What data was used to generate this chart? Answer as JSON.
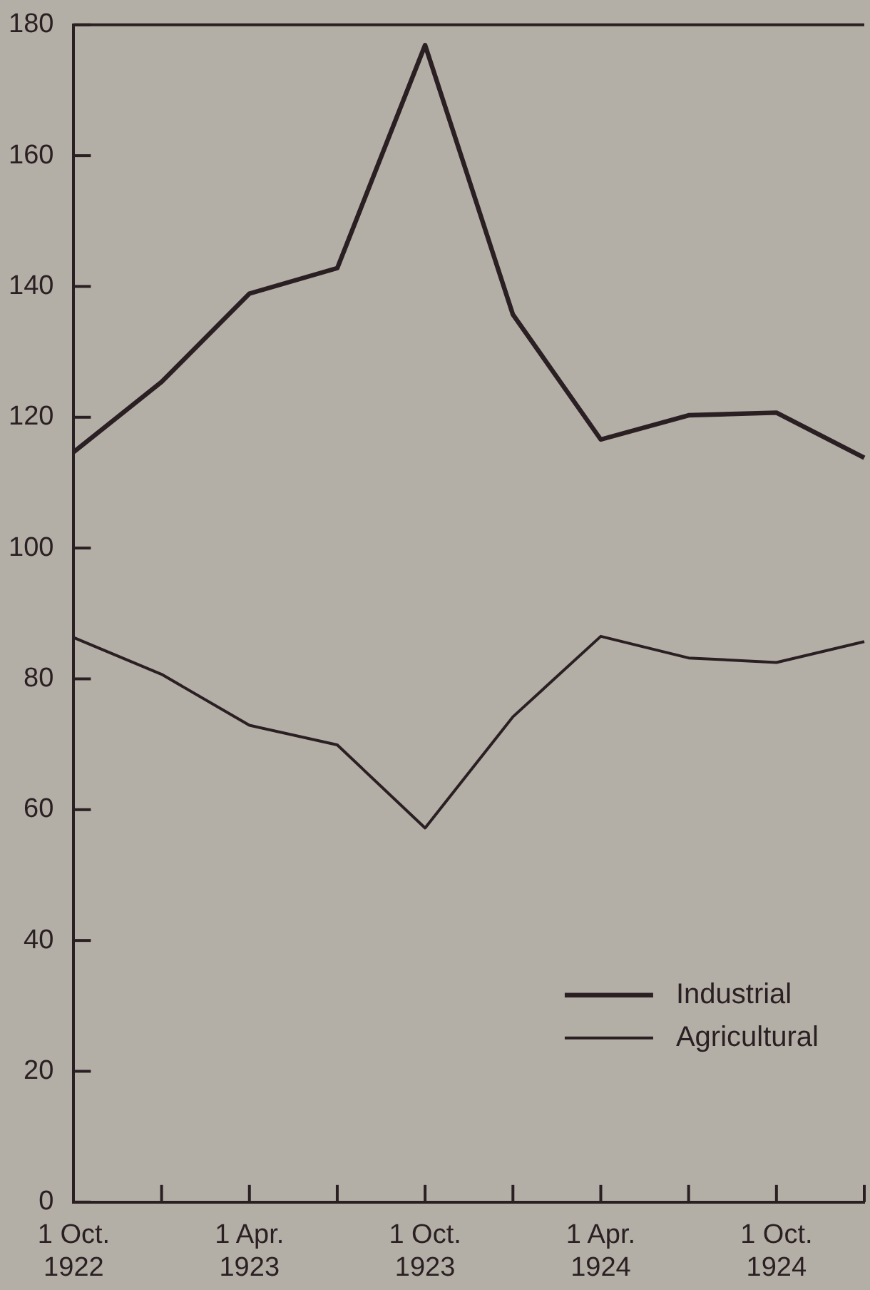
{
  "chart_data": {
    "type": "line",
    "categories": [
      "1 Oct. 1922",
      null,
      "1 Apr. 1923",
      null,
      "1 Oct. 1923",
      null,
      "1 Apr. 1924",
      null,
      "1 Oct. 1924",
      null
    ],
    "series": [
      {
        "name": "Industrial",
        "color": "#2a1f22",
        "values": [
          114.7,
          125.4,
          138.9,
          142.8,
          176.9,
          135.7,
          116.6,
          120.3,
          120.7,
          113.8
        ]
      },
      {
        "name": "Agricultural",
        "color": "#2a1f22",
        "values": [
          86.3,
          80.7,
          72.9,
          69.9,
          57.2,
          74.2,
          86.5,
          83.2,
          82.5,
          85.7
        ]
      }
    ],
    "ylim": [
      0,
      180
    ],
    "yticks": [
      0,
      20,
      40,
      60,
      80,
      100,
      120,
      140,
      160,
      180
    ],
    "grid": false,
    "legend": "bottom right",
    "marker": "none",
    "line_style": "solid"
  }
}
